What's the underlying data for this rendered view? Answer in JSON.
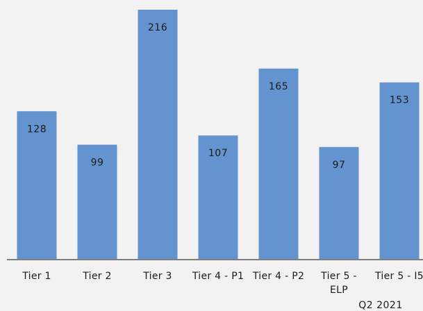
{
  "chart_data": {
    "type": "bar",
    "categories": [
      [
        "Tier 1"
      ],
      [
        "Tier 2"
      ],
      [
        "Tier 3"
      ],
      [
        "Tier 4 - P1"
      ],
      [
        "Tier 4 - P2"
      ],
      [
        "Tier 5 -",
        "ELP"
      ],
      [
        "Tier 5 - I5"
      ]
    ],
    "values": [
      128,
      99,
      216,
      107,
      165,
      97,
      153
    ],
    "ylim": [
      0,
      225
    ],
    "grid": false,
    "bar_color": "#6494cf",
    "axis_color": "#7f7f7f",
    "footnote": "Q2 2021"
  }
}
